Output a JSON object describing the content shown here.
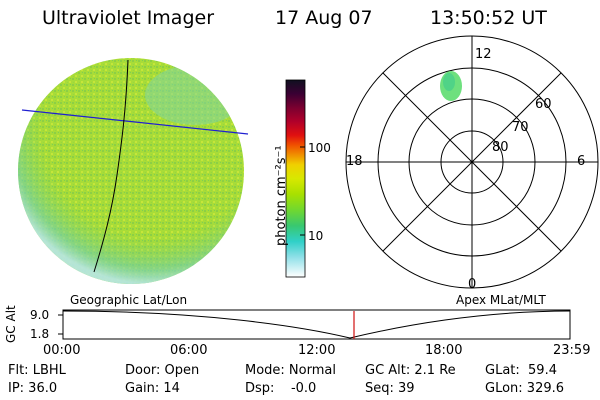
{
  "header": {
    "title": "Ultraviolet Imager",
    "date": "17 Aug 07",
    "time": "13:50:52 UT"
  },
  "colorbar": {
    "unit_label": "photon cm⁻²s⁻¹",
    "ticks": [
      "100",
      "10"
    ],
    "colors": [
      "#101020",
      "#3a0033",
      "#7a0030",
      "#b0002a",
      "#e01010",
      "#f05000",
      "#f09000",
      "#f0d000",
      "#d8e800",
      "#a8e000",
      "#70d830",
      "#38c870",
      "#30d0c8",
      "#90e0e8",
      "#ffffff"
    ]
  },
  "left_image": {
    "label": "Geographic Lat/Lon",
    "fill_colors": [
      "#a8dc38",
      "#8ccf45",
      "#c6e63a",
      "#6fcf6f",
      "#b7e6e6"
    ]
  },
  "polar_plot": {
    "label": "Apex MLat/MLT",
    "mlt_labels": [
      "12",
      "18",
      "6",
      "0"
    ],
    "lat_labels": [
      "60",
      "70",
      "80"
    ],
    "blob_color": "#6ee07e"
  },
  "timeline": {
    "ylabel": "GC Alt",
    "y_ticks": [
      "9.0",
      "1.8"
    ],
    "x_ticks": [
      "00:00",
      "06:00",
      "12:00",
      "18:00",
      "23:59"
    ],
    "marker_time": "13:50:52",
    "marker_color": "#d01010"
  },
  "status": {
    "flt": "Flt: LBHL",
    "ip": "IP: 36.0",
    "door": "Door: Open",
    "gain": "Gain: 14",
    "mode": "Mode: Normal",
    "dsp": "Dsp:    -0.0",
    "gcalt": "GC Alt: 2.1 Re",
    "seq": "Seq: 39",
    "glat": "GLat:  59.4",
    "glon": "GLon: 329.6"
  }
}
